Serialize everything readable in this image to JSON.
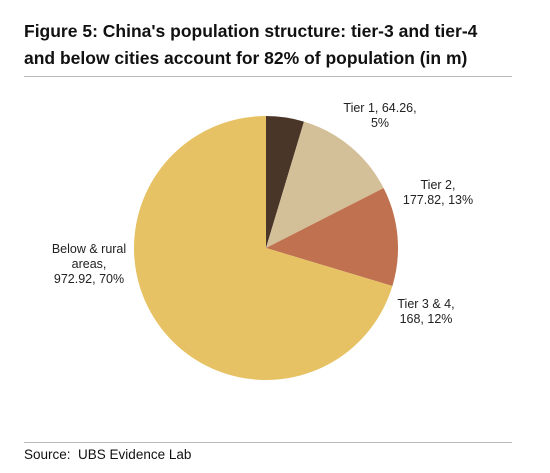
{
  "header": {
    "title_line1": "Figure 5: China's population structure: tier-3 and tier-4",
    "title_line2": "and below cities account for 82% of population (in m)"
  },
  "footer": {
    "source_label": "Source:",
    "source_text": "UBS Evidence Lab"
  },
  "chart_data": {
    "type": "pie",
    "title": "Figure 5: China's population structure: tier-3 and tier-4 and below cities account for 82% of population (in m)",
    "start_angle_deg": 0,
    "direction": "clockwise",
    "slices": [
      {
        "name": "Tier 1",
        "value": 64.26,
        "percent": 5,
        "color": "#4a3628",
        "label_lines": [
          "Tier 1, 64.26,",
          "5%"
        ]
      },
      {
        "name": "Tier 2",
        "value": 177.82,
        "percent": 13,
        "color": "#d3bf98",
        "label_lines": [
          "Tier 2,",
          "177.82, 13%"
        ]
      },
      {
        "name": "Tier 3 & 4",
        "value": 168,
        "percent": 12,
        "color": "#c0714f",
        "label_lines": [
          "Tier 3 & 4,",
          "168, 12%"
        ]
      },
      {
        "name": "Below & rural areas",
        "value": 972.92,
        "percent": 70,
        "color": "#e6c264",
        "label_lines": [
          "Below & rural",
          "areas,",
          "972.92, 70%"
        ]
      }
    ],
    "legend": "none"
  }
}
